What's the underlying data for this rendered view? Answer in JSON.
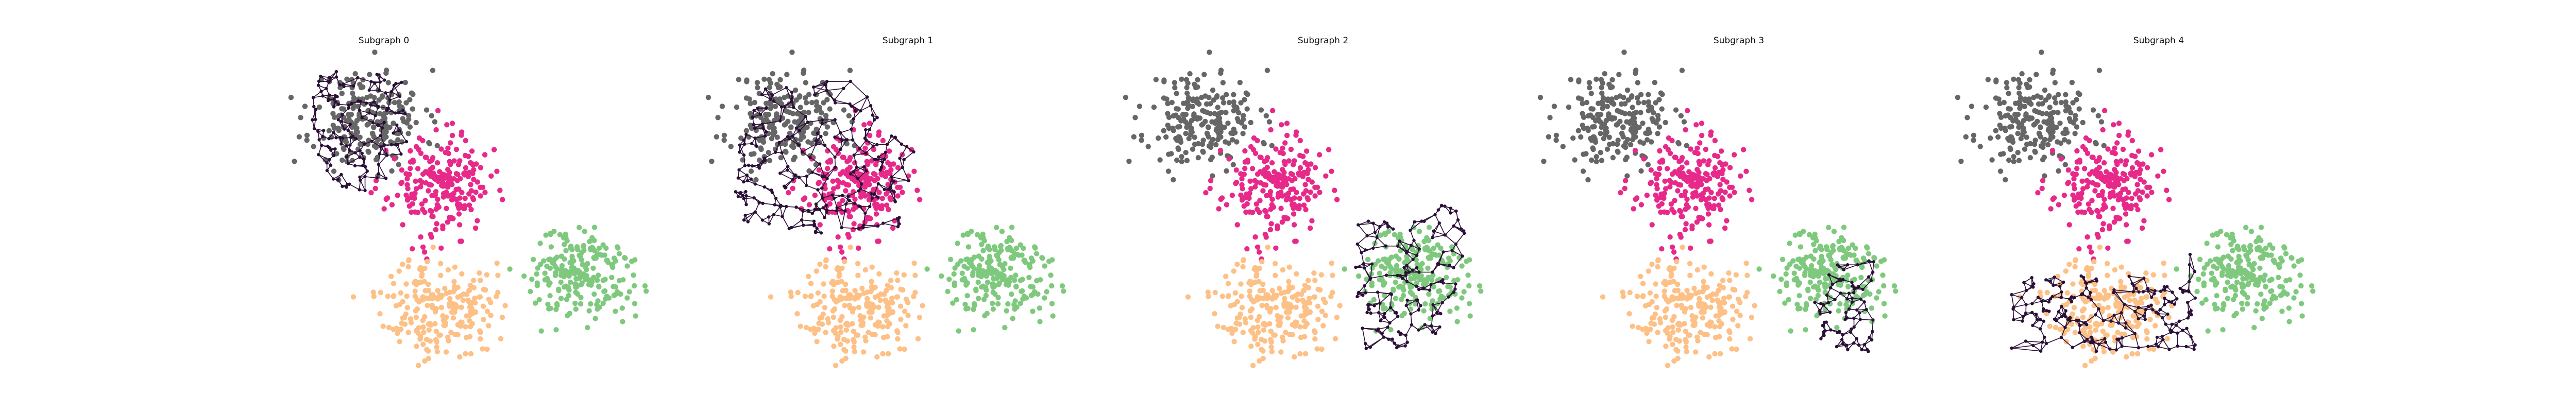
{
  "figure": {
    "panels": [
      {
        "title": "Subgraph 0"
      },
      {
        "title": "Subgraph 1"
      },
      {
        "title": "Subgraph 2"
      },
      {
        "title": "Subgraph 3"
      },
      {
        "title": "Subgraph 4"
      }
    ]
  },
  "chart_data": {
    "type": "scatter",
    "subplots": 5,
    "layout": "1x5",
    "axes_visible": false,
    "grid": false,
    "legend": "none",
    "clusters": [
      {
        "id": "gray",
        "color": "#666666",
        "center": [
          -2.0,
          2.6
        ],
        "spread": [
          0.55,
          0.55
        ],
        "n": 220,
        "seed": 11
      },
      {
        "id": "pink",
        "color": "#e7298a",
        "center": [
          -0.6,
          1.1
        ],
        "spread": [
          0.5,
          0.55
        ],
        "n": 220,
        "seed": 23
      },
      {
        "id": "orange",
        "color": "#fdc086",
        "center": [
          -0.6,
          -1.6
        ],
        "spread": [
          0.55,
          0.55
        ],
        "n": 220,
        "seed": 37
      },
      {
        "id": "green",
        "color": "#7fc97f",
        "center": [
          2.2,
          -0.9
        ],
        "spread": [
          0.55,
          0.5
        ],
        "n": 220,
        "seed": 51
      }
    ],
    "subgraph_color": "#2a0f36",
    "subgraphs": [
      {
        "title": "Subgraph 0",
        "polygon": [
          [
            -3.1,
            3.7
          ],
          [
            -1.3,
            3.6
          ],
          [
            -1.2,
            2.2
          ],
          [
            -1.7,
            1.0
          ],
          [
            -2.6,
            1.0
          ],
          [
            -3.2,
            2.0
          ]
        ],
        "n_nodes": 150,
        "seed": 101
      },
      {
        "title": "Subgraph 1",
        "polygon": [
          [
            -3.1,
            2.0
          ],
          [
            -2.4,
            3.3
          ],
          [
            -0.7,
            3.6
          ],
          [
            0.6,
            1.8
          ],
          [
            0.3,
            0.2
          ],
          [
            -1.2,
            0.0
          ],
          [
            -3.0,
            0.3
          ]
        ],
        "n_nodes": 240,
        "seed": 202
      },
      {
        "title": "Subgraph 2",
        "polygon": [
          [
            1.0,
            0.3
          ],
          [
            3.2,
            1.0
          ],
          [
            3.2,
            -0.5
          ],
          [
            2.7,
            -2.4
          ],
          [
            1.2,
            -2.6
          ],
          [
            1.0,
            -1.0
          ]
        ],
        "n_nodes": 150,
        "seed": 303
      },
      {
        "title": "Subgraph 3",
        "polygon": [
          [
            2.1,
            -0.7
          ],
          [
            3.1,
            -0.5
          ],
          [
            3.1,
            -2.6
          ],
          [
            2.0,
            -2.6
          ],
          [
            1.9,
            -1.5
          ]
        ],
        "n_nodes": 80,
        "seed": 404
      },
      {
        "title": "Subgraph 4",
        "polygon": [
          [
            -2.5,
            -0.9
          ],
          [
            0.4,
            -0.9
          ],
          [
            1.2,
            -0.2
          ],
          [
            1.2,
            -2.6
          ],
          [
            -2.5,
            -2.6
          ]
        ],
        "n_nodes": 190,
        "seed": 505
      }
    ],
    "xlim": [
      -3.6,
      4.2
    ],
    "ylim": [
      -2.8,
      4.0
    ]
  }
}
